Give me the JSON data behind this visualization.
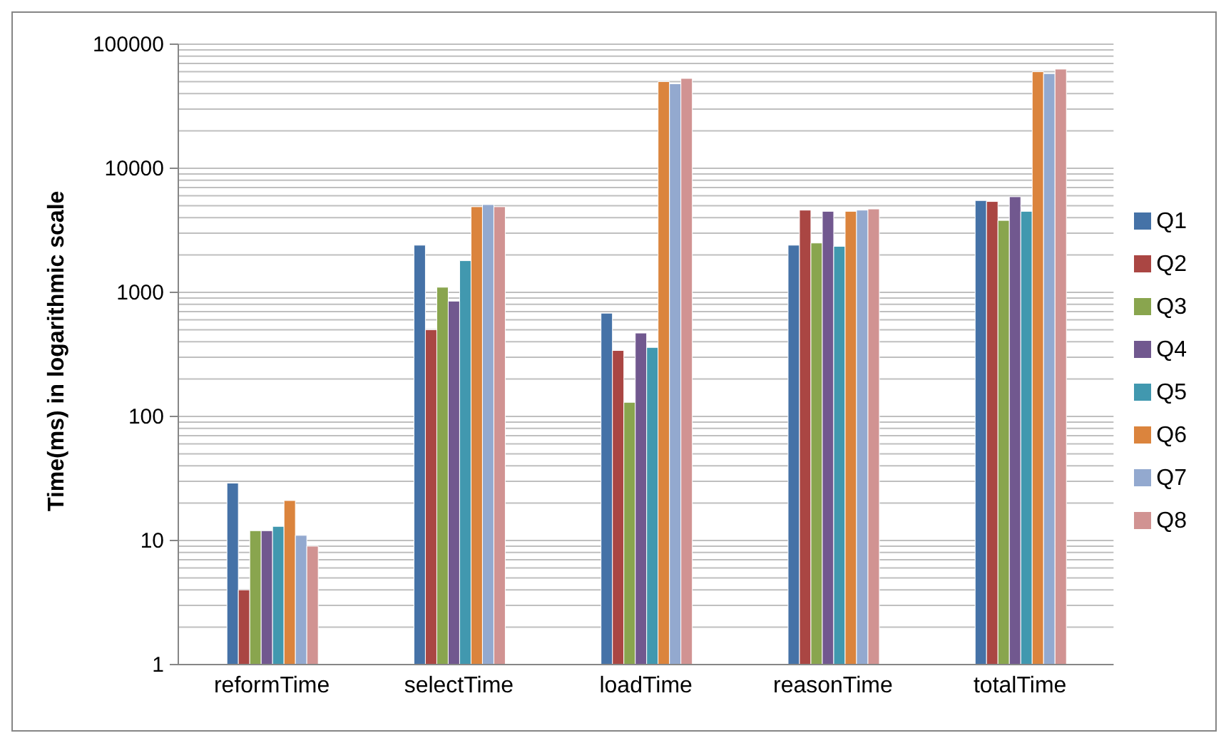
{
  "chart_data": {
    "type": "bar",
    "ylabel": "Time(ms) in logarithmic scale",
    "categories": [
      "reformTime",
      "selectTime",
      "loadTime",
      "reasonTime",
      "totalTime"
    ],
    "log": "y",
    "ylim": [
      1,
      100000
    ],
    "yticks": [
      1,
      {
        "value": 2,
        "label": null
      },
      {
        "value": 3,
        "label": null
      },
      {
        "value": 4,
        "label": null
      },
      {
        "value": 5,
        "label": null
      },
      {
        "value": 6,
        "label": null
      },
      {
        "value": 7,
        "label": null
      },
      {
        "value": 8,
        "label": null
      },
      {
        "value": 9,
        "label": null
      },
      10,
      {
        "value": 20,
        "label": null
      },
      {
        "value": 30,
        "label": null
      },
      {
        "value": 40,
        "label": null
      },
      {
        "value": 50,
        "label": null
      },
      {
        "value": 60,
        "label": null
      },
      {
        "value": 70,
        "label": null
      },
      {
        "value": 80,
        "label": null
      },
      {
        "value": 90,
        "label": null
      },
      100,
      {
        "value": 200,
        "label": null
      },
      {
        "value": 300,
        "label": null
      },
      {
        "value": 400,
        "label": null
      },
      {
        "value": 500,
        "label": null
      },
      {
        "value": 600,
        "label": null
      },
      {
        "value": 700,
        "label": null
      },
      {
        "value": 800,
        "label": null
      },
      {
        "value": 900,
        "label": null
      },
      1000,
      {
        "value": 2000,
        "label": null
      },
      {
        "value": 3000,
        "label": null
      },
      {
        "value": 4000,
        "label": null
      },
      {
        "value": 5000,
        "label": null
      },
      {
        "value": 6000,
        "label": null
      },
      {
        "value": 7000,
        "label": null
      },
      {
        "value": 8000,
        "label": null
      },
      {
        "value": 9000,
        "label": null
      },
      10000,
      {
        "value": 20000,
        "label": null
      },
      {
        "value": 30000,
        "label": null
      },
      {
        "value": 40000,
        "label": null
      },
      {
        "value": 50000,
        "label": null
      },
      {
        "value": 60000,
        "label": null
      },
      {
        "value": 70000,
        "label": null
      },
      {
        "value": 80000,
        "label": null
      },
      {
        "value": 90000,
        "label": null
      },
      100000
    ],
    "grid": "y",
    "legend": "right",
    "series": [
      {
        "name": "Q1",
        "color": "#4572a7",
        "values": [
          29,
          2400,
          680,
          2400,
          5500
        ]
      },
      {
        "name": "Q2",
        "color": "#aa4643",
        "values": [
          4,
          500,
          340,
          4600,
          5400
        ]
      },
      {
        "name": "Q3",
        "color": "#89a54e",
        "values": [
          12,
          1100,
          130,
          2500,
          3800
        ]
      },
      {
        "name": "Q4",
        "color": "#71588f",
        "values": [
          12,
          850,
          470,
          4500,
          5900
        ]
      },
      {
        "name": "Q5",
        "color": "#4198af",
        "values": [
          13,
          1800,
          360,
          2350,
          4500
        ]
      },
      {
        "name": "Q6",
        "color": "#db843d",
        "values": [
          21,
          4900,
          50000,
          4500,
          60000
        ]
      },
      {
        "name": "Q7",
        "color": "#93a9cf",
        "values": [
          11,
          5100,
          48000,
          4600,
          58000
        ]
      },
      {
        "name": "Q8",
        "color": "#d19392",
        "values": [
          9,
          4900,
          53000,
          4700,
          63000
        ]
      }
    ]
  }
}
